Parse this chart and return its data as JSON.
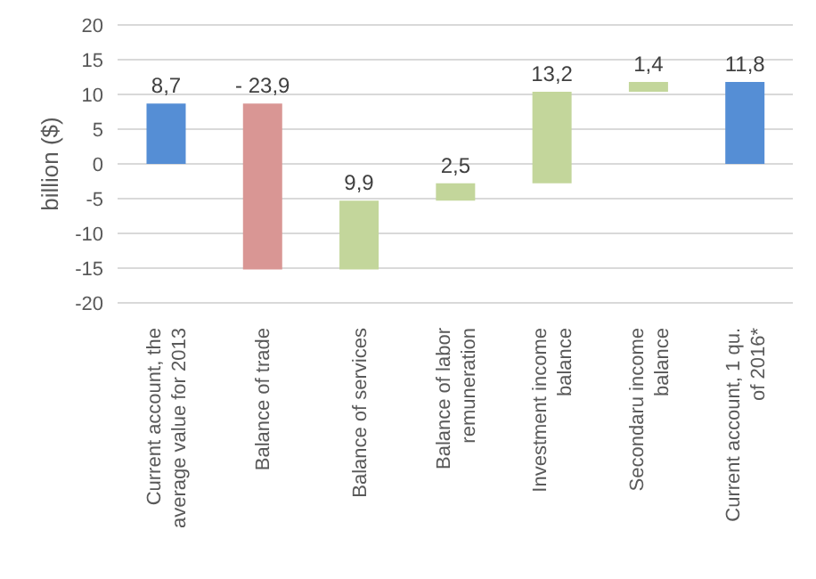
{
  "chart_data": {
    "type": "bar",
    "ylabel": "billion ($)",
    "categories": [
      "Current account, the average value for 2013",
      "Balance of trade",
      "Balance of services",
      "Balance of labor remuneration",
      "Investment income balance",
      "Secondaru income balance",
      "Current account, 1 qu. of 2016*"
    ],
    "values": [
      8.7,
      -23.9,
      9.9,
      2.5,
      13.2,
      1.4,
      11.8
    ],
    "base": [
      0,
      8.7,
      -15.2,
      -5.3,
      -2.8,
      10.4,
      0
    ],
    "colors": [
      "#558ed5",
      "#d99694",
      "#c3d69b",
      "#c3d69b",
      "#c3d69b",
      "#c3d69b",
      "#558ed5"
    ],
    "value_labels": [
      "8,7",
      "- 23,9",
      "9,9",
      "2,5",
      "13,2",
      "1,4",
      "11,8"
    ],
    "ylim": [
      -20,
      20
    ],
    "yticks": [
      -20,
      -15,
      -10,
      -5,
      0,
      5,
      10,
      15,
      20
    ],
    "grid": "y",
    "legend": false
  }
}
